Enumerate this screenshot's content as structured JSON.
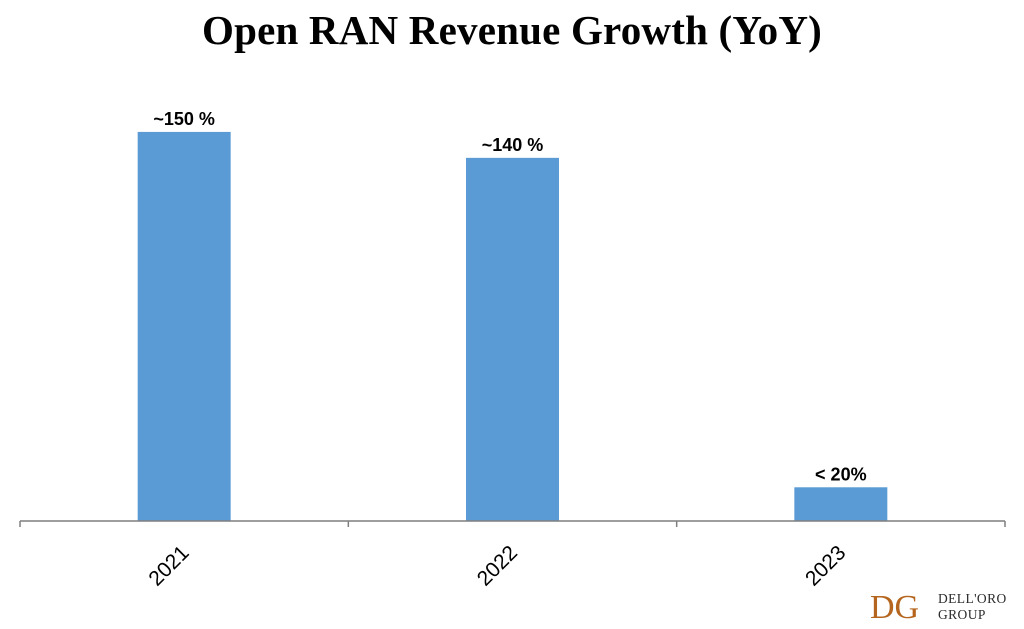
{
  "chart_data": {
    "type": "bar",
    "title": "Open RAN Revenue Growth (YoY)",
    "categories": [
      "2021",
      "2022",
      "2023"
    ],
    "values": [
      150,
      140,
      13
    ],
    "data_labels": [
      "~150 %",
      "~140 %",
      "< 20%"
    ],
    "bar_color": "#5b9bd5",
    "ylim": [
      0,
      165
    ],
    "grid": false,
    "xlabel": "",
    "ylabel": ""
  },
  "branding": {
    "logo_mark": "DG",
    "line1": "DELL'ORO",
    "line2": "GROUP",
    "color": "#b5651d"
  }
}
